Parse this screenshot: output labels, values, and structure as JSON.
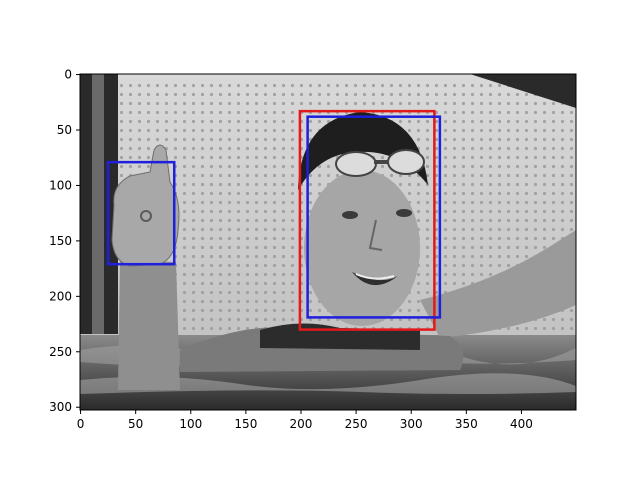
{
  "chart_data": {
    "type": "image-with-bounding-boxes",
    "title": "",
    "xlabel": "",
    "ylabel": "",
    "image": {
      "description": "grayscale photo of swimmer in pool giving thumbs up",
      "width": 450,
      "height": 303
    },
    "xlim": [
      -0.5,
      449.5
    ],
    "ylim": [
      302.5,
      -0.5
    ],
    "xticks": [
      0,
      50,
      100,
      150,
      200,
      250,
      300,
      350,
      400
    ],
    "yticks": [
      0,
      50,
      100,
      150,
      200,
      250,
      300
    ],
    "boxes": [
      {
        "name": "red-box",
        "color": "#e31a1c",
        "x0": 199,
        "y0": 33,
        "x1": 321,
        "y1": 230
      },
      {
        "name": "blue-box-face",
        "color": "#1f1fdc",
        "x0": 206,
        "y0": 38,
        "x1": 326,
        "y1": 219
      },
      {
        "name": "blue-box-hand",
        "color": "#1f1fdc",
        "x0": 25,
        "y0": 79,
        "x1": 85,
        "y1": 171
      }
    ]
  }
}
